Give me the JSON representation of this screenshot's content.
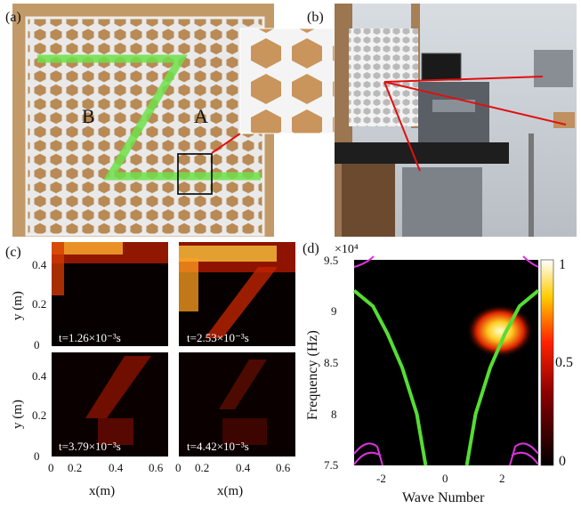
{
  "panels": {
    "a": {
      "label": "(a)",
      "region_b": "B",
      "region_a": "A"
    },
    "b": {
      "label": "(b)"
    },
    "c": {
      "label": "(c)",
      "x_ticks": [
        "0",
        "0.2",
        "0.4",
        "0.6"
      ],
      "y_ticks": [
        "0",
        "0.2",
        "0.4"
      ],
      "xlabel": "x(m)",
      "ylabel": "y (m)",
      "snapshots": [
        {
          "time_label": "t=1.26×10⁻³s"
        },
        {
          "time_label": "t=2.53×10⁻³s"
        },
        {
          "time_label": "t=3.79×10⁻³s"
        },
        {
          "time_label": "t=4.42×10⁻³s"
        }
      ]
    },
    "d": {
      "label": "(d)",
      "exponent_label": "×10⁴",
      "y_ticks": [
        "9.5",
        "9",
        "8.5",
        "8",
        "7.5"
      ],
      "x_ticks": [
        "-2",
        "0",
        "2"
      ],
      "xlabel": "Wave Number",
      "ylabel": "Frequency (Hz)",
      "colorbar_ticks": [
        "1",
        "0.5",
        "0"
      ]
    }
  },
  "colors": {
    "green_path": "#55dd33",
    "magenta_band": "#dd33dd",
    "heat_hot": "#ffee66"
  },
  "chart_data": {
    "type": "line",
    "xlabel": "Wave Number",
    "ylabel": "Frequency (Hz)",
    "xlim": [
      -3.14,
      3.14
    ],
    "ylim": [
      75000,
      95000
    ],
    "series": [
      {
        "x": [
          -3.14,
          -2.5,
          -2.0,
          -1.5,
          -1.0,
          -0.7,
          0.7,
          1.0,
          1.5,
          2.0,
          2.5,
          3.14
        ],
        "y": [
          92000,
          90500,
          87800,
          84500,
          80000,
          75000,
          75000,
          80000,
          84500,
          87800,
          90500,
          92000
        ]
      }
    ]
  }
}
